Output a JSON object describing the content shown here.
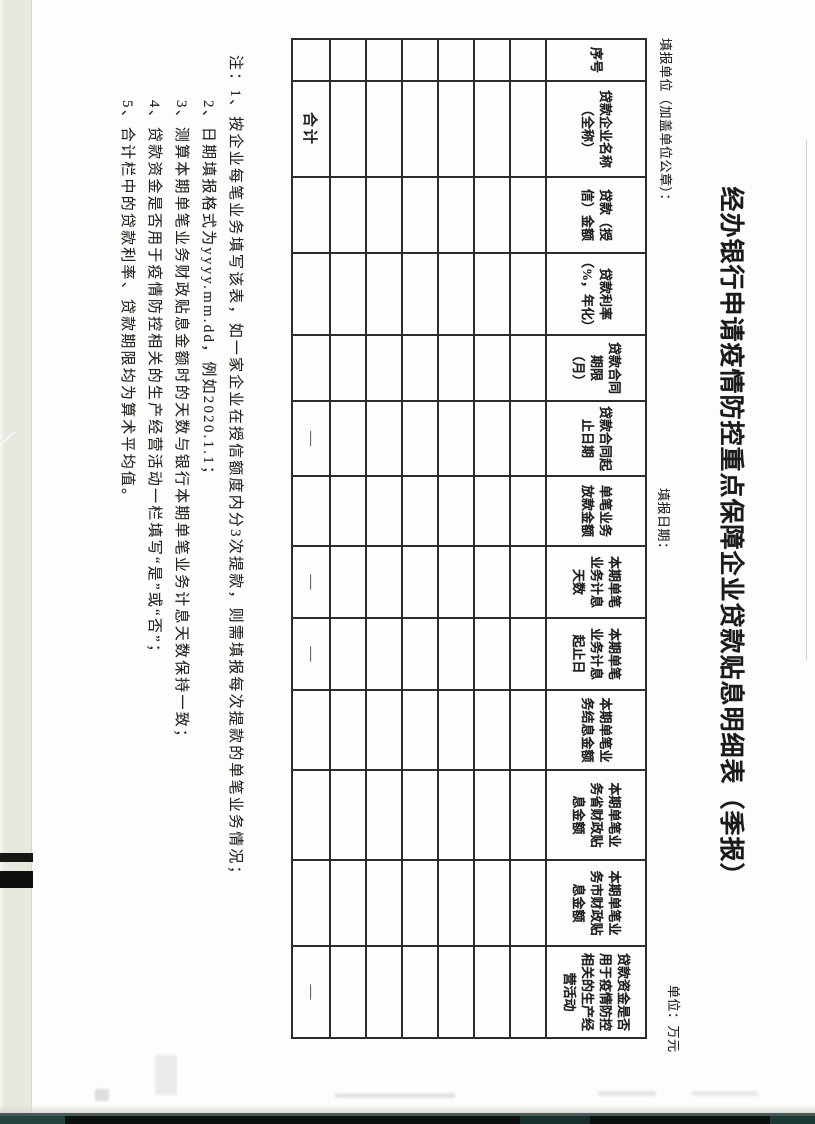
{
  "form": {
    "title": "经办银行申请疫情防控重点保障企业贷款贴息明细表（季报）",
    "reporting_unit_label": "填报单位（加盖单位公章）：",
    "report_date_label": "填报日期：",
    "unit_label": "单位：万元",
    "table": {
      "headers": [
        "序号",
        "贷款企业名称\n（全称）",
        "贷款（授\n信）金额",
        "贷款利率\n（%，年化）",
        "贷款合同\n期限\n（月）",
        "贷款合同起\n止日期",
        "单笔业务\n放款金额",
        "本期单笔\n业务计息\n天数",
        "本期单笔\n业务计息\n起止日",
        "本期单笔业\n务结息金额",
        "本期单笔业\n务省财政贴\n息金额",
        "本期单笔业\n务市财政贴\n息金额",
        "贷款资金是否\n用于疫情防控\n相关的生产经\n营活动"
      ],
      "empty_rows": 6,
      "total_row": [
        "",
        "合计",
        "",
        "",
        "",
        "—",
        "",
        "—",
        "—",
        "",
        "",
        "",
        "—"
      ]
    },
    "notes": [
      "注：1、按企业每笔业务填写该表，如一家企业在授信额度内分3次提款，则需填报每次提款的单笔业务情况；",
      "2、日期填报格式为yyyy.mm.dd，例如2020.1.1；",
      "3、测算本期单笔业务财政贴息金额时的天数与银行本期单笔业务计息天数保持一致；",
      "4、贷款资金是否用于疫情防控相关的生产经营活动一栏填写“是”或“否”；",
      "5、合计栏中的贷款利率、贷款期限均为算术平均值。"
    ]
  },
  "colors": {
    "paper": "#fdfdfb",
    "ink": "#1e1d1b",
    "table_line": "#2e2c29",
    "scanner_strip": "#e7e8e0",
    "film_bar": "#121212",
    "bottom_strip": "#0c1110",
    "bottom_teal": "#24453f"
  }
}
